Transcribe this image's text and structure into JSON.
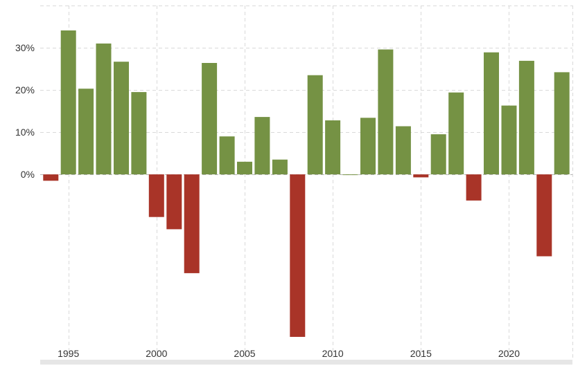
{
  "chart_data": {
    "type": "bar",
    "title": "",
    "xlabel": "",
    "ylabel": "",
    "x": [
      1994,
      1995,
      1996,
      1997,
      1998,
      1999,
      2000,
      2001,
      2002,
      2003,
      2004,
      2005,
      2006,
      2007,
      2008,
      2009,
      2010,
      2011,
      2012,
      2013,
      2014,
      2015,
      2016,
      2017,
      2018,
      2019,
      2020,
      2021,
      2022,
      2023
    ],
    "values": [
      -1.5,
      34.1,
      20.3,
      31.0,
      26.7,
      19.5,
      -10.1,
      -13.0,
      -23.4,
      26.4,
      9.0,
      3.0,
      13.6,
      3.5,
      -38.5,
      23.5,
      12.8,
      0.0,
      13.4,
      29.6,
      11.4,
      -0.7,
      9.5,
      19.4,
      -6.2,
      28.9,
      16.3,
      26.9,
      -19.4,
      24.2
    ],
    "xlim": [
      1993.4,
      2023.6
    ],
    "ylim": [
      -38.5,
      40.0
    ],
    "xticks": [
      1995,
      2000,
      2005,
      2010,
      2015,
      2020
    ],
    "xtick_labels": [
      "1995",
      "2000",
      "2005",
      "2010",
      "2015",
      "2020"
    ],
    "yticks": [
      0,
      10,
      20,
      30
    ],
    "ytick_labels": [
      "0%",
      "10%",
      "20%",
      "30%"
    ],
    "grid": true,
    "legend": "none",
    "colors": {
      "positive": "#759244",
      "negative": "#a93428",
      "grid": "#d9d9d9",
      "zero_line": "#b3b3b3",
      "text": "#333333"
    }
  }
}
